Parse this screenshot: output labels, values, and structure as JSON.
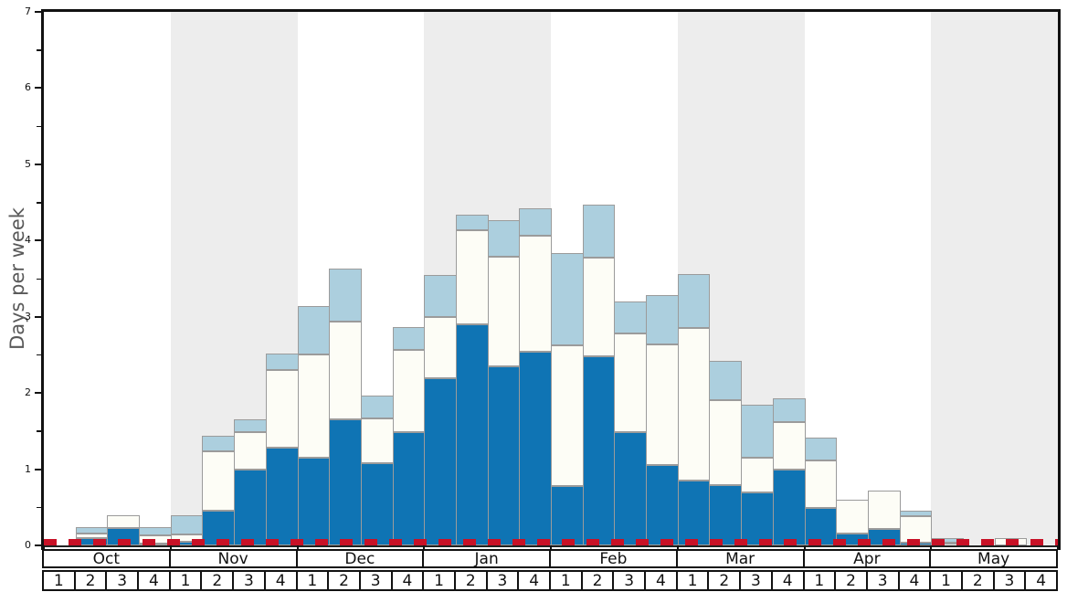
{
  "ylabel": "Days per week",
  "axes": {
    "y_major_ticks": [
      "0",
      "1",
      "2",
      "3",
      "4",
      "5",
      "6",
      "7"
    ],
    "y_minor_step": 0.5,
    "ylim": [
      0,
      7
    ]
  },
  "months": [
    {
      "label": "Oct",
      "weeks": [
        "1",
        "2",
        "3",
        "4"
      ],
      "shaded": false
    },
    {
      "label": "Nov",
      "weeks": [
        "1",
        "2",
        "3",
        "4"
      ],
      "shaded": true
    },
    {
      "label": "Dec",
      "weeks": [
        "1",
        "2",
        "3",
        "4"
      ],
      "shaded": false
    },
    {
      "label": "Jan",
      "weeks": [
        "1",
        "2",
        "3",
        "4"
      ],
      "shaded": true
    },
    {
      "label": "Feb",
      "weeks": [
        "1",
        "2",
        "3",
        "4"
      ],
      "shaded": false
    },
    {
      "label": "Mar",
      "weeks": [
        "1",
        "2",
        "3",
        "4"
      ],
      "shaded": true
    },
    {
      "label": "Apr",
      "weeks": [
        "1",
        "2",
        "3",
        "4"
      ],
      "shaded": false
    },
    {
      "label": "May",
      "weeks": [
        "1",
        "2",
        "3",
        "4"
      ],
      "shaded": true
    }
  ],
  "colors": {
    "dark_blue": "#0f74b4",
    "white_bar": "#fdfdf6",
    "light_blue": "#accfde",
    "red_line": "#c81126",
    "band_gray": "#ededed",
    "bar_outline": "#9b9b9b",
    "axis": "#111111",
    "ylabel_gray": "#595959"
  },
  "chart_data": {
    "type": "bar",
    "title": "",
    "xlabel": "",
    "ylabel": "Days per week",
    "ylim": [
      0,
      7
    ],
    "grid": false,
    "legend": "none",
    "categories_months": [
      "Oct",
      "Nov",
      "Dec",
      "Jan",
      "Feb",
      "Mar",
      "Apr",
      "May"
    ],
    "weeks_per_month": 4,
    "shaded_month_bands": [
      "Nov",
      "Jan",
      "Mar",
      "May"
    ],
    "stack_note": "values are cumulative stack tops per week (32 weeks, Oct w1 through May w4)",
    "series": [
      {
        "name": "dark_blue_bottom",
        "color": "#0f74b4",
        "values": [
          0,
          0.1,
          0.23,
          0.02,
          0.05,
          0.45,
          0.99,
          1.28,
          1.15,
          1.65,
          1.08,
          1.49,
          2.19,
          2.9,
          2.35,
          2.54,
          0.78,
          2.48,
          1.49,
          1.06,
          0.85,
          0.79,
          0.7,
          1.0,
          0.49,
          0.15,
          0.22,
          0.03,
          0.01,
          0,
          0,
          0
        ]
      },
      {
        "name": "white_middle_top",
        "color": "#fdfdf6",
        "values": [
          0,
          0.15,
          0.4,
          0.13,
          0.14,
          1.24,
          1.49,
          2.3,
          2.5,
          2.94,
          1.67,
          2.56,
          3.0,
          4.14,
          3.79,
          4.06,
          2.63,
          3.77,
          2.78,
          2.64,
          2.85,
          1.91,
          1.15,
          1.62,
          1.11,
          0.6,
          0.72,
          0.38,
          0.04,
          0,
          0.1,
          0
        ]
      },
      {
        "name": "light_blue_top",
        "color": "#accfde",
        "values": [
          0,
          0.24,
          0.4,
          0.24,
          0.4,
          1.44,
          1.65,
          2.52,
          3.14,
          3.63,
          1.97,
          2.86,
          3.55,
          4.34,
          4.27,
          4.42,
          3.83,
          4.47,
          3.2,
          3.28,
          3.56,
          2.42,
          1.85,
          1.93,
          1.42,
          0.6,
          0.72,
          0.45,
          0.09,
          0,
          0.1,
          0
        ]
      }
    ],
    "reference_line": {
      "value": 0.05,
      "style": "dashed",
      "color": "#c81126",
      "label": ""
    }
  }
}
